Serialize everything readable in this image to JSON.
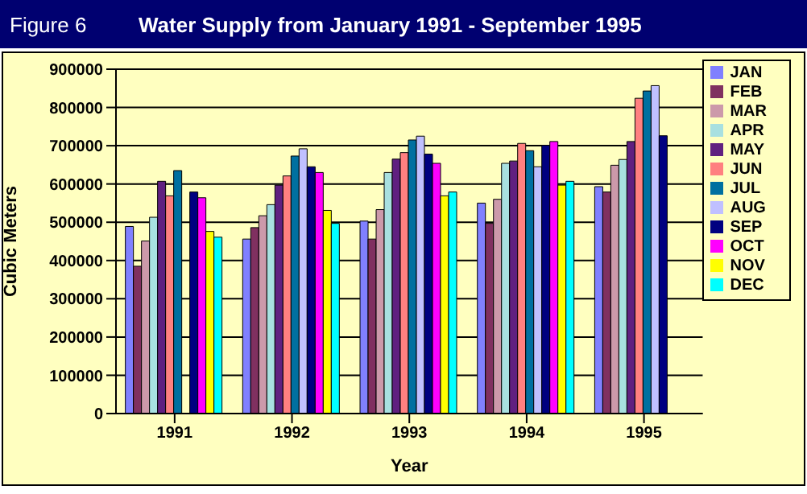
{
  "chart_data": {
    "type": "bar",
    "title": "Water Supply from January 1991 - September 1995",
    "annotations": [
      "Figure 6"
    ],
    "xlabel": "Year",
    "ylabel": "Cubic Meters",
    "categories": [
      "1991",
      "1992",
      "1993",
      "1994",
      "1995"
    ],
    "series": [
      {
        "name": "JAN",
        "color": "#8080ff",
        "values": [
          489000,
          456000,
          503000,
          550000,
          593000
        ]
      },
      {
        "name": "FEB",
        "color": "#803060",
        "values": [
          385000,
          486000,
          456000,
          497000,
          579000
        ]
      },
      {
        "name": "MAR",
        "color": "#cc99aa",
        "values": [
          451000,
          517000,
          533000,
          560000,
          649000
        ]
      },
      {
        "name": "APR",
        "color": "#a8e0e0",
        "values": [
          513000,
          546000,
          630000,
          654000,
          664000
        ]
      },
      {
        "name": "MAY",
        "color": "#602080",
        "values": [
          607000,
          597000,
          665000,
          660000,
          711000
        ]
      },
      {
        "name": "JUN",
        "color": "#ff8080",
        "values": [
          569000,
          621000,
          682000,
          706000,
          824000
        ]
      },
      {
        "name": "JUL",
        "color": "#0070a0",
        "values": [
          635000,
          673000,
          715000,
          687000,
          843000
        ]
      },
      {
        "name": "AUG",
        "color": "#c0c0ff",
        "values": [
          null,
          692000,
          725000,
          645000,
          857000
        ]
      },
      {
        "name": "SEP",
        "color": "#000080",
        "values": [
          579000,
          645000,
          678000,
          701000,
          726000
        ]
      },
      {
        "name": "OCT",
        "color": "#ff00ff",
        "values": [
          564000,
          630000,
          654000,
          711000,
          null
        ]
      },
      {
        "name": "NOV",
        "color": "#ffff00",
        "values": [
          476000,
          531000,
          569000,
          597000,
          null
        ]
      },
      {
        "name": "DEC",
        "color": "#00ffff",
        "values": [
          461000,
          497000,
          579000,
          607000,
          null
        ]
      }
    ],
    "ylim": [
      0,
      900000
    ],
    "yticks": [
      0,
      100000,
      200000,
      300000,
      400000,
      500000,
      600000,
      700000,
      800000,
      900000
    ],
    "grid": "y",
    "legend": "right"
  }
}
